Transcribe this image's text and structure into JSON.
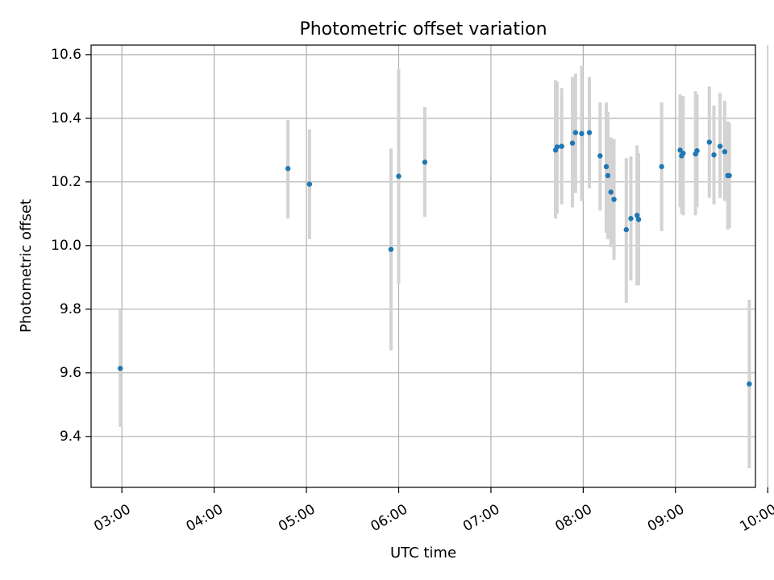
{
  "chart_data": {
    "type": "scatter",
    "title": "Photometric offset variation",
    "xlabel": "UTC time",
    "ylabel": "Photometric offset",
    "x_ticks": [
      "03:00",
      "04:00",
      "05:00",
      "06:00",
      "07:00",
      "08:00",
      "09:00",
      "10:00"
    ],
    "y_ticks": [
      "9.4",
      "9.6",
      "9.8",
      "10.0",
      "10.2",
      "10.4",
      "10.6"
    ],
    "xlim": [
      "02:40",
      "09:52"
    ],
    "ylim": [
      9.24,
      10.63
    ],
    "grid": true,
    "colors": {
      "marker": "#1f77b4",
      "errorbar": "#d3d3d3",
      "grid": "#b0b0b0"
    },
    "points": [
      {
        "x": "02:59",
        "y": 9.614,
        "lo": 9.43,
        "hi": 9.8
      },
      {
        "x": "04:48",
        "y": 10.242,
        "lo": 10.085,
        "hi": 10.395
      },
      {
        "x": "05:02",
        "y": 10.193,
        "lo": 10.02,
        "hi": 10.365
      },
      {
        "x": "05:55",
        "y": 9.988,
        "lo": 9.67,
        "hi": 10.305
      },
      {
        "x": "06:00",
        "y": 10.218,
        "lo": 9.88,
        "hi": 10.555
      },
      {
        "x": "06:17",
        "y": 10.262,
        "lo": 10.09,
        "hi": 10.435
      },
      {
        "x": "07:42",
        "y": 10.3,
        "lo": 10.085,
        "hi": 10.52
      },
      {
        "x": "07:43",
        "y": 10.31,
        "lo": 10.1,
        "hi": 10.515
      },
      {
        "x": "07:46",
        "y": 10.312,
        "lo": 10.13,
        "hi": 10.495
      },
      {
        "x": "07:53",
        "y": 10.322,
        "lo": 10.12,
        "hi": 10.53
      },
      {
        "x": "07:55",
        "y": 10.355,
        "lo": 10.165,
        "hi": 10.54
      },
      {
        "x": "07:59",
        "y": 10.352,
        "lo": 10.14,
        "hi": 10.565
      },
      {
        "x": "08:04",
        "y": 10.355,
        "lo": 10.18,
        "hi": 10.53
      },
      {
        "x": "08:11",
        "y": 10.282,
        "lo": 10.11,
        "hi": 10.45
      },
      {
        "x": "08:15",
        "y": 10.248,
        "lo": 10.04,
        "hi": 10.45
      },
      {
        "x": "08:16",
        "y": 10.22,
        "lo": 10.02,
        "hi": 10.42
      },
      {
        "x": "08:18",
        "y": 10.168,
        "lo": 9.995,
        "hi": 10.34
      },
      {
        "x": "08:20",
        "y": 10.145,
        "lo": 9.955,
        "hi": 10.335
      },
      {
        "x": "08:28",
        "y": 10.05,
        "lo": 9.82,
        "hi": 10.275
      },
      {
        "x": "08:31",
        "y": 10.085,
        "lo": 9.89,
        "hi": 10.28
      },
      {
        "x": "08:35",
        "y": 10.095,
        "lo": 9.875,
        "hi": 10.315
      },
      {
        "x": "08:36",
        "y": 10.082,
        "lo": 9.875,
        "hi": 10.29
      },
      {
        "x": "08:51",
        "y": 10.248,
        "lo": 10.045,
        "hi": 10.45
      },
      {
        "x": "09:03",
        "y": 10.3,
        "lo": 10.12,
        "hi": 10.475
      },
      {
        "x": "09:04",
        "y": 10.282,
        "lo": 10.1,
        "hi": 10.47
      },
      {
        "x": "09:05",
        "y": 10.29,
        "lo": 10.095,
        "hi": 10.47
      },
      {
        "x": "09:13",
        "y": 10.288,
        "lo": 10.095,
        "hi": 10.485
      },
      {
        "x": "09:14",
        "y": 10.298,
        "lo": 10.12,
        "hi": 10.475
      },
      {
        "x": "09:22",
        "y": 10.325,
        "lo": 10.15,
        "hi": 10.5
      },
      {
        "x": "09:25",
        "y": 10.285,
        "lo": 10.13,
        "hi": 10.44
      },
      {
        "x": "09:29",
        "y": 10.312,
        "lo": 10.15,
        "hi": 10.48
      },
      {
        "x": "09:32",
        "y": 10.295,
        "lo": 10.14,
        "hi": 10.455
      },
      {
        "x": "09:34",
        "y": 10.22,
        "lo": 10.05,
        "hi": 10.39
      },
      {
        "x": "09:35",
        "y": 10.22,
        "lo": 10.055,
        "hi": 10.385
      },
      {
        "x": "09:48",
        "y": 9.565,
        "lo": 9.3,
        "hi": 9.83
      }
    ]
  }
}
